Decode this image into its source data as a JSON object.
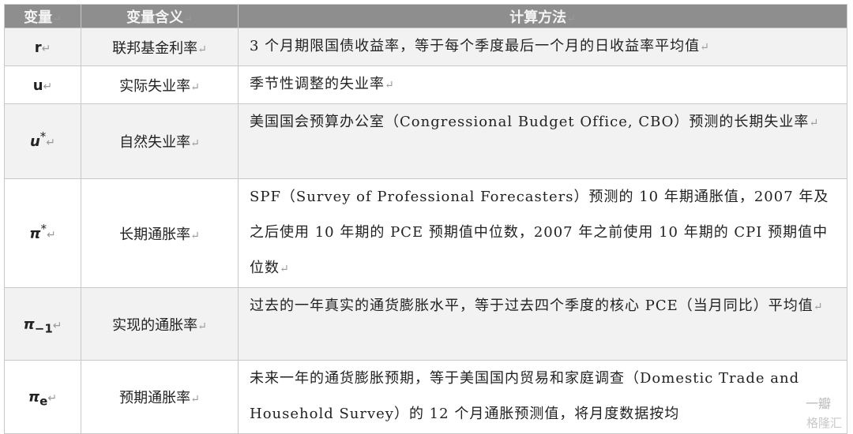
{
  "header": {
    "variable": "变量",
    "meaning": "变量含义",
    "method": "计算方法"
  },
  "rows": [
    {
      "var": "r",
      "sub": "",
      "sup": "",
      "meaning": "联邦基金利率",
      "method": "3 个月期限国债收益率，等于每个季度最后一个月的日收益率平均值"
    },
    {
      "var": "u",
      "sub": "",
      "sup": "",
      "meaning": "实际失业率",
      "method": "季节性调整的失业率"
    },
    {
      "var": "u",
      "sub": "",
      "sup": "*",
      "meaning": "自然失业率",
      "method": "美国国会预算办公室（Congressional Budget Office, CBO）预测的长期失业率"
    },
    {
      "var": "π",
      "sub": "",
      "sup": "*",
      "meaning": "长期通胀率",
      "method": "SPF（Survey of Professional Forecasters）预测的 10 年期通胀值，2007 年及之后使用 10 年期的 PCE 预期值中位数，2007 年之前使用 10 年期的 CPI 预期值中位数"
    },
    {
      "var": "π",
      "sub": "−1",
      "sup": "",
      "meaning": "实现的通胀率",
      "method": "过去的一年真实的通货膨胀水平，等于过去四个季度的核心 PCE（当月同比）平均值"
    },
    {
      "var": "π",
      "sub": "e",
      "sup": "",
      "meaning": "预期通胀率",
      "method": "未来一年的通货膨胀预期，等于美国国内贸易和家庭调查（Domestic Trade and Household Survey）的 12 个月通胀预测值，将月度数据按均"
    }
  ],
  "return_mark": "↵",
  "watermark": {
    "source": "一瓣",
    "logo": "格隆汇"
  },
  "colors": {
    "header_bg": "#8e8e8e",
    "stripe": "#f2f2f2"
  }
}
